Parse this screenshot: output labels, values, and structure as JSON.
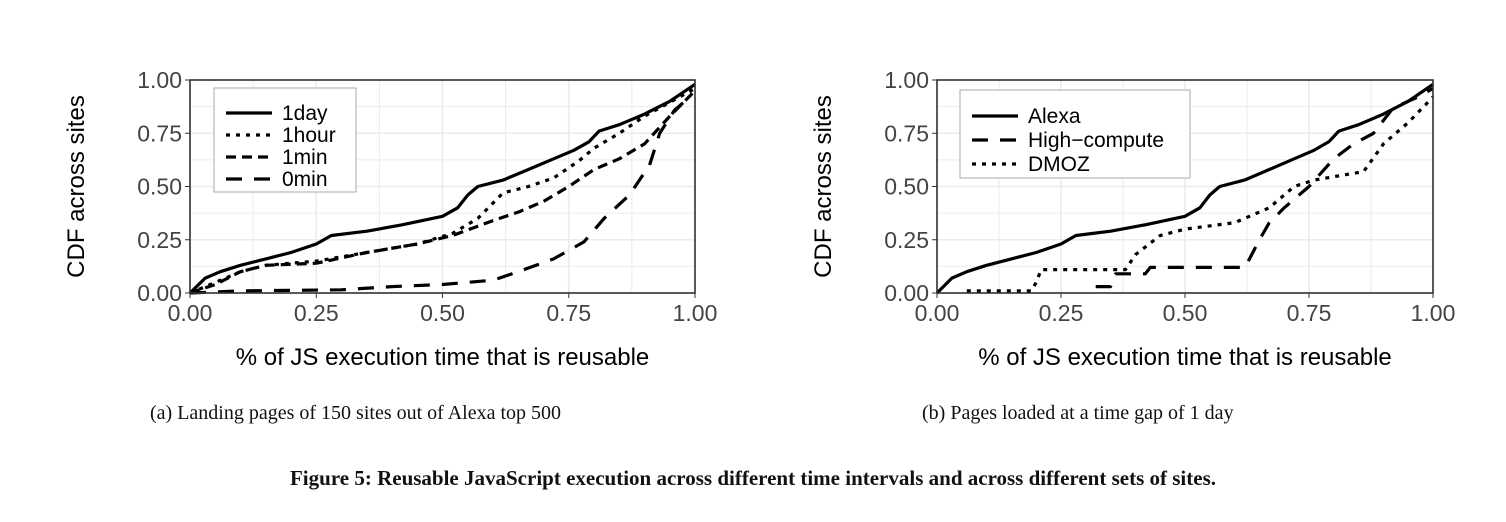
{
  "chart_data": [
    {
      "type": "line",
      "subcaption": "(a) Landing pages of 150 sites out of Alexa top 500",
      "xlabel": "% of JS execution time that is reusable",
      "ylabel": "CDF across sites",
      "xlim": [
        0,
        1
      ],
      "ylim": [
        0,
        1
      ],
      "xticks": [
        "0.00",
        "0.25",
        "0.50",
        "0.75",
        "1.00"
      ],
      "yticks": [
        "0.00",
        "0.25",
        "0.50",
        "0.75",
        "1.00"
      ],
      "grid": true,
      "legend_position": "top-left",
      "series": [
        {
          "name": "1day",
          "style": "solid",
          "x": [
            0,
            0.03,
            0.06,
            0.1,
            0.15,
            0.2,
            0.25,
            0.28,
            0.35,
            0.42,
            0.5,
            0.53,
            0.55,
            0.57,
            0.62,
            0.67,
            0.72,
            0.76,
            0.79,
            0.81,
            0.85,
            0.9,
            0.95,
            1
          ],
          "y": [
            0,
            0.07,
            0.1,
            0.13,
            0.16,
            0.19,
            0.23,
            0.27,
            0.29,
            0.32,
            0.36,
            0.4,
            0.46,
            0.5,
            0.53,
            0.58,
            0.63,
            0.67,
            0.71,
            0.76,
            0.79,
            0.84,
            0.9,
            0.98
          ]
        },
        {
          "name": "1hour",
          "style": "dotted",
          "x": [
            0,
            0.05,
            0.1,
            0.15,
            0.25,
            0.35,
            0.45,
            0.52,
            0.57,
            0.62,
            0.67,
            0.72,
            0.77,
            0.8,
            0.85,
            0.9,
            1
          ],
          "y": [
            0,
            0.05,
            0.1,
            0.13,
            0.15,
            0.19,
            0.23,
            0.28,
            0.35,
            0.47,
            0.5,
            0.54,
            0.62,
            0.68,
            0.75,
            0.83,
            0.96
          ]
        },
        {
          "name": "1min",
          "style": "dashed",
          "x": [
            0,
            0.05,
            0.1,
            0.15,
            0.25,
            0.35,
            0.45,
            0.52,
            0.6,
            0.65,
            0.7,
            0.75,
            0.8,
            0.85,
            0.9,
            0.95,
            1
          ],
          "y": [
            0,
            0.04,
            0.1,
            0.13,
            0.14,
            0.19,
            0.23,
            0.27,
            0.34,
            0.38,
            0.43,
            0.5,
            0.58,
            0.63,
            0.7,
            0.83,
            0.95
          ]
        },
        {
          "name": "0min",
          "style": "longdash",
          "x": [
            0,
            0.05,
            0.1,
            0.3,
            0.4,
            0.5,
            0.6,
            0.65,
            0.72,
            0.78,
            0.82,
            0.87,
            0.91,
            0.93,
            0.96,
            0.98
          ],
          "y": [
            0,
            0.005,
            0.01,
            0.015,
            0.03,
            0.04,
            0.06,
            0.1,
            0.16,
            0.24,
            0.35,
            0.46,
            0.6,
            0.75,
            0.86,
            0.9
          ]
        }
      ]
    },
    {
      "type": "line",
      "subcaption": "(b) Pages loaded at a time gap of 1 day",
      "xlabel": "% of JS execution time that is reusable",
      "ylabel": "CDF across sites",
      "xlim": [
        0,
        1
      ],
      "ylim": [
        0,
        1
      ],
      "xticks": [
        "0.00",
        "0.25",
        "0.50",
        "0.75",
        "1.00"
      ],
      "yticks": [
        "0.00",
        "0.25",
        "0.50",
        "0.75",
        "1.00"
      ],
      "grid": true,
      "legend_position": "top-left",
      "series": [
        {
          "name": "Alexa",
          "style": "solid",
          "x": [
            0,
            0.03,
            0.06,
            0.1,
            0.15,
            0.2,
            0.25,
            0.28,
            0.35,
            0.42,
            0.5,
            0.53,
            0.55,
            0.57,
            0.62,
            0.67,
            0.72,
            0.76,
            0.79,
            0.81,
            0.85,
            0.9,
            0.95,
            1
          ],
          "y": [
            0,
            0.07,
            0.1,
            0.13,
            0.16,
            0.19,
            0.23,
            0.27,
            0.29,
            0.32,
            0.36,
            0.4,
            0.46,
            0.5,
            0.53,
            0.58,
            0.63,
            0.67,
            0.71,
            0.76,
            0.79,
            0.84,
            0.9,
            0.98
          ]
        },
        {
          "name": "High−compute",
          "style": "longdash",
          "x": [
            0.32,
            0.35,
            0.36,
            0.42,
            0.43,
            0.62,
            0.63,
            0.65,
            0.67,
            0.7,
            0.75,
            0.8,
            0.84,
            0.88,
            0.92,
            0.97,
            1
          ],
          "y": [
            0.03,
            0.03,
            0.09,
            0.09,
            0.12,
            0.12,
            0.16,
            0.25,
            0.33,
            0.4,
            0.5,
            0.63,
            0.7,
            0.75,
            0.87,
            0.92,
            0.96
          ]
        },
        {
          "name": "DMOZ",
          "style": "dotted",
          "x": [
            0.06,
            0.19,
            0.2,
            0.21,
            0.38,
            0.4,
            0.45,
            0.5,
            0.6,
            0.67,
            0.72,
            0.76,
            0.86,
            0.9,
            0.95,
            1
          ],
          "y": [
            0.01,
            0.01,
            0.05,
            0.11,
            0.11,
            0.18,
            0.27,
            0.3,
            0.33,
            0.4,
            0.5,
            0.53,
            0.57,
            0.7,
            0.8,
            0.92
          ]
        }
      ]
    }
  ],
  "figure_caption": "Figure 5: Reusable JavaScript execution across different time intervals and across different sets of sites."
}
